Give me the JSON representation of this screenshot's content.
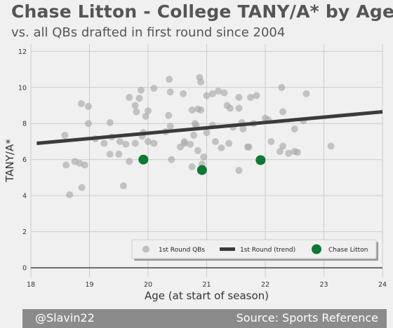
{
  "title": "Chase Litton - College TANY/A* by Age",
  "subtitle": "vs. all QBs drafted in first round since 2004",
  "footer": {
    "left": "@Slavin22",
    "right": "Source: Sports Reference"
  },
  "colors": {
    "background": "#f0f0f0",
    "points": "#a9a9a9",
    "trend": "#3b3b3b",
    "highlight": "#0b7a32",
    "grid": "#cbcbcb",
    "footer_bg": "#8b8b8b"
  },
  "chart_data": {
    "type": "scatter",
    "xlabel": "Age (at start of season)",
    "ylabel": "TANY/A*",
    "xlim": [
      18,
      24
    ],
    "ylim": [
      -0.5,
      12.4
    ],
    "xticks": [
      18,
      19,
      20,
      21,
      22,
      23,
      24
    ],
    "yticks": [
      0,
      2,
      4,
      6,
      8,
      10,
      12
    ],
    "grid": true,
    "legend_position": "bottom-right",
    "legend": [
      "1st Round QBs",
      "1st Round (trend)",
      "Chase Litton"
    ],
    "series": [
      {
        "name": "1st Round QBs",
        "kind": "scatter",
        "points": [
          [
            18.58,
            7.35
          ],
          [
            18.6,
            5.7
          ],
          [
            18.66,
            4.05
          ],
          [
            18.75,
            5.9
          ],
          [
            18.83,
            5.8
          ],
          [
            18.86,
            9.1
          ],
          [
            18.87,
            4.45
          ],
          [
            18.92,
            5.7
          ],
          [
            18.98,
            8.95
          ],
          [
            18.98,
            8.0
          ],
          [
            19.1,
            7.15
          ],
          [
            19.25,
            6.9
          ],
          [
            19.35,
            8.05
          ],
          [
            19.35,
            6.3
          ],
          [
            19.38,
            7.25
          ],
          [
            19.5,
            6.3
          ],
          [
            19.52,
            7.0
          ],
          [
            19.58,
            4.55
          ],
          [
            19.62,
            6.85
          ],
          [
            19.68,
            5.9
          ],
          [
            19.68,
            9.45
          ],
          [
            19.78,
            6.9
          ],
          [
            19.78,
            9.0
          ],
          [
            19.8,
            8.65
          ],
          [
            19.85,
            9.4
          ],
          [
            19.88,
            9.85
          ],
          [
            19.9,
            7.3
          ],
          [
            19.92,
            7.5
          ],
          [
            19.96,
            8.4
          ],
          [
            20.0,
            8.7
          ],
          [
            20.0,
            7.0
          ],
          [
            20.1,
            9.95
          ],
          [
            20.1,
            6.9
          ],
          [
            20.3,
            7.55
          ],
          [
            20.35,
            8.45
          ],
          [
            20.36,
            10.45
          ],
          [
            20.38,
            9.75
          ],
          [
            20.38,
            7.85
          ],
          [
            20.4,
            6.0
          ],
          [
            20.55,
            6.7
          ],
          [
            20.6,
            9.65
          ],
          [
            20.62,
            7.0
          ],
          [
            20.62,
            6.9
          ],
          [
            20.72,
            6.85
          ],
          [
            20.75,
            8.75
          ],
          [
            20.75,
            5.6
          ],
          [
            20.78,
            7.35
          ],
          [
            20.8,
            8.0
          ],
          [
            20.82,
            7.9
          ],
          [
            20.85,
            8.8
          ],
          [
            20.85,
            6.5
          ],
          [
            20.88,
            10.55
          ],
          [
            20.9,
            10.3
          ],
          [
            20.9,
            8.75
          ],
          [
            20.92,
            5.75
          ],
          [
            20.95,
            6.15
          ],
          [
            21.0,
            7.5
          ],
          [
            21.0,
            9.55
          ],
          [
            21.1,
            7.9
          ],
          [
            21.15,
            7.0
          ],
          [
            21.2,
            9.8
          ],
          [
            21.1,
            9.65
          ],
          [
            21.25,
            6.65
          ],
          [
            21.3,
            9.7
          ],
          [
            21.35,
            9.0
          ],
          [
            21.38,
            6.9
          ],
          [
            21.4,
            8.85
          ],
          [
            21.45,
            7.8
          ],
          [
            21.55,
            5.4
          ],
          [
            21.55,
            9.45
          ],
          [
            21.55,
            8.85
          ],
          [
            21.6,
            8.05
          ],
          [
            21.62,
            7.7
          ],
          [
            21.7,
            6.7
          ],
          [
            21.72,
            6.7
          ],
          [
            21.75,
            9.45
          ],
          [
            21.8,
            8.0
          ],
          [
            21.85,
            9.55
          ],
          [
            22.0,
            8.3
          ],
          [
            22.05,
            8.2
          ],
          [
            22.1,
            7.0
          ],
          [
            22.25,
            6.45
          ],
          [
            22.28,
            10.0
          ],
          [
            22.3,
            6.75
          ],
          [
            22.3,
            8.65
          ],
          [
            22.4,
            6.35
          ],
          [
            22.5,
            7.7
          ],
          [
            22.5,
            6.45
          ],
          [
            22.55,
            6.4
          ],
          [
            22.65,
            8.15
          ],
          [
            22.7,
            9.65
          ],
          [
            23.12,
            6.75
          ]
        ]
      },
      {
        "name": "1st Round (trend)",
        "kind": "line",
        "points": [
          [
            18.1,
            6.9
          ],
          [
            24.0,
            8.65
          ]
        ]
      },
      {
        "name": "Chase Litton",
        "kind": "scatter",
        "points": [
          [
            19.92,
            6.0
          ],
          [
            20.92,
            5.42
          ],
          [
            21.92,
            5.97
          ]
        ]
      }
    ]
  }
}
